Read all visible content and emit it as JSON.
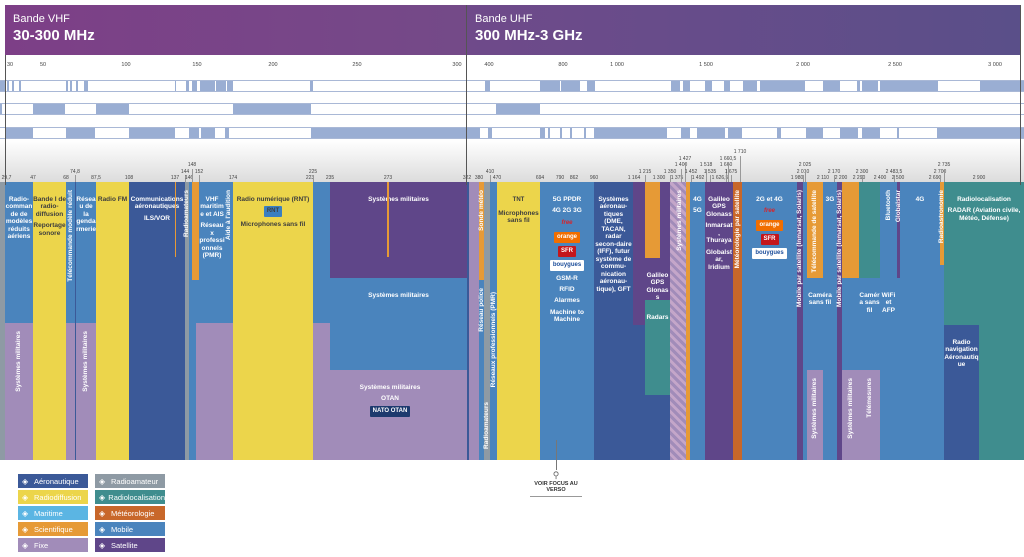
{
  "header": {
    "vhf": {
      "sub": "Bande VHF",
      "title": "30-300 MHz"
    },
    "uhf": {
      "sub": "Bande UHF",
      "title": "300 MHz-3 GHz"
    }
  },
  "top_axis": [
    "30",
    "50",
    "100",
    "150",
    "200",
    "250",
    "300",
    "400",
    "800",
    "1 000",
    "1 500",
    "2 000",
    "2 500",
    "3 000"
  ],
  "bottom_ticks": [
    "29,7",
    "47",
    "68",
    "74,8",
    "87,5",
    "108",
    "137",
    "144",
    "146",
    "148",
    "152",
    "174",
    "223",
    "225",
    "235",
    "273",
    "322",
    "380",
    "410",
    "470",
    "694",
    "790",
    "862",
    "960",
    "1 164",
    "1 215",
    "1 300",
    "1 350",
    "1 375",
    "1 400",
    "1 427",
    "1 452",
    "1 492",
    "1 518",
    "1 535",
    "1 626,5",
    "1 660",
    "1 660,5",
    "1 675",
    "1 710",
    "1 980",
    "2 010",
    "2 025",
    "2 110",
    "2 170",
    "2 200",
    "2 290",
    "2 300",
    "2 400",
    "2 483,5",
    "2 500",
    "2 690",
    "2 700",
    "2 735",
    "2 900"
  ],
  "categories": {
    "aero": {
      "label": "Aéronautique",
      "color": "#3b5998",
      "icon": "airplane-tower-icon"
    },
    "broad": {
      "label": "Radiodiffusion",
      "color": "#ecd54b",
      "icon": "antenna-icon"
    },
    "mari": {
      "label": "Maritime",
      "color": "#5bb5e3",
      "icon": "lighthouse-icon"
    },
    "sci": {
      "label": "Scientifique",
      "color": "#e69a36",
      "icon": "molecule-icon"
    },
    "fixe": {
      "label": "Fixe",
      "color": "#a18cb9",
      "icon": "fixed-station-icon"
    },
    "ham": {
      "label": "Radioamateur",
      "color": "#8e9aa4",
      "icon": "walkie-talkie-icon"
    },
    "loc": {
      "label": "Radiolocalisation",
      "color": "#3f8d8e",
      "icon": "location-pin-icon"
    },
    "meteo": {
      "label": "Météorologie",
      "color": "#c8672a",
      "icon": "sun-cloud-icon"
    },
    "mob": {
      "label": "Mobile",
      "color": "#4a84bd",
      "icon": "mobile-phone-icon"
    },
    "sat": {
      "label": "Satellite",
      "color": "#5f4689",
      "icon": "satellite-icon"
    }
  },
  "labels": {
    "rc": "Radio-commande de modèles réduits aériens",
    "mil": "Systèmes militaires",
    "band1": "Bande I de radio-diffusion",
    "rep": "Reportage sonore",
    "telecmd": "Télécommande modèle réduit",
    "gend": "Réseau de la gendarmerie",
    "fm": "Radio FM",
    "aerocom": "Communications aéronautiques",
    "ils": "ILS/VOR",
    "ham": "Radioamateurs",
    "vhfmar": "VHF maritime et AIS",
    "pmr": "Réseaux professionnels (PMR)",
    "audition": "Aide à l'audition",
    "rnt": "Radio numérique (RNT)",
    "rntlogo": "RNT",
    "micro": "Microphones sans fil",
    "otan": "OTAN",
    "nato": "NATO OTAN",
    "sonde": "Sonde météo",
    "police": "Réseau police",
    "tnt": "TNT",
    "ppdr": "5G PPDR",
    "g423": "4G 2G 3G",
    "free": "free",
    "orange": "orange",
    "sfr": "SFR",
    "bouygues": "bouygues",
    "gsmr": "GSM-R",
    "rfid": "RFID",
    "alarmes": "Alarmes",
    "m2m": "Machine to Machine",
    "aerosys": "Systèmes aéronau-tiques (DME, TACAN, radar secon-daire (IFF), futur système de commu-nication aéronau-tique), GFT",
    "gnss": "Galileo GPS Glonass",
    "radars": "Radars",
    "g4": "4G",
    "g5": "5G",
    "inmarsat": "Inmarsat, Thuraya",
    "globalstar": "Globalstar, Iridium",
    "meteosat": "Météorologie par satellite",
    "g24": "2G et 4G",
    "mss": "Mobile par satellite (Inmarsat, Solaris)",
    "g3": "3G",
    "telesat": "Télécommande de satellite",
    "camera": "Caméra sans fil",
    "telemes": "Télémesures",
    "bt": "Bluetooth",
    "wifi": "WiFi et AFP",
    "gstar": "Globalstar",
    "radioastro": "Radioastronomie",
    "radloc": "Radiolocalisation",
    "radar": "RADAR (Aviation civile, Météo, Défense)",
    "radnav": "Radio navigation Aéronautique"
  },
  "focus": {
    "label": "VOIR FOCUS AU VERSO",
    "icon": "search-icon"
  }
}
